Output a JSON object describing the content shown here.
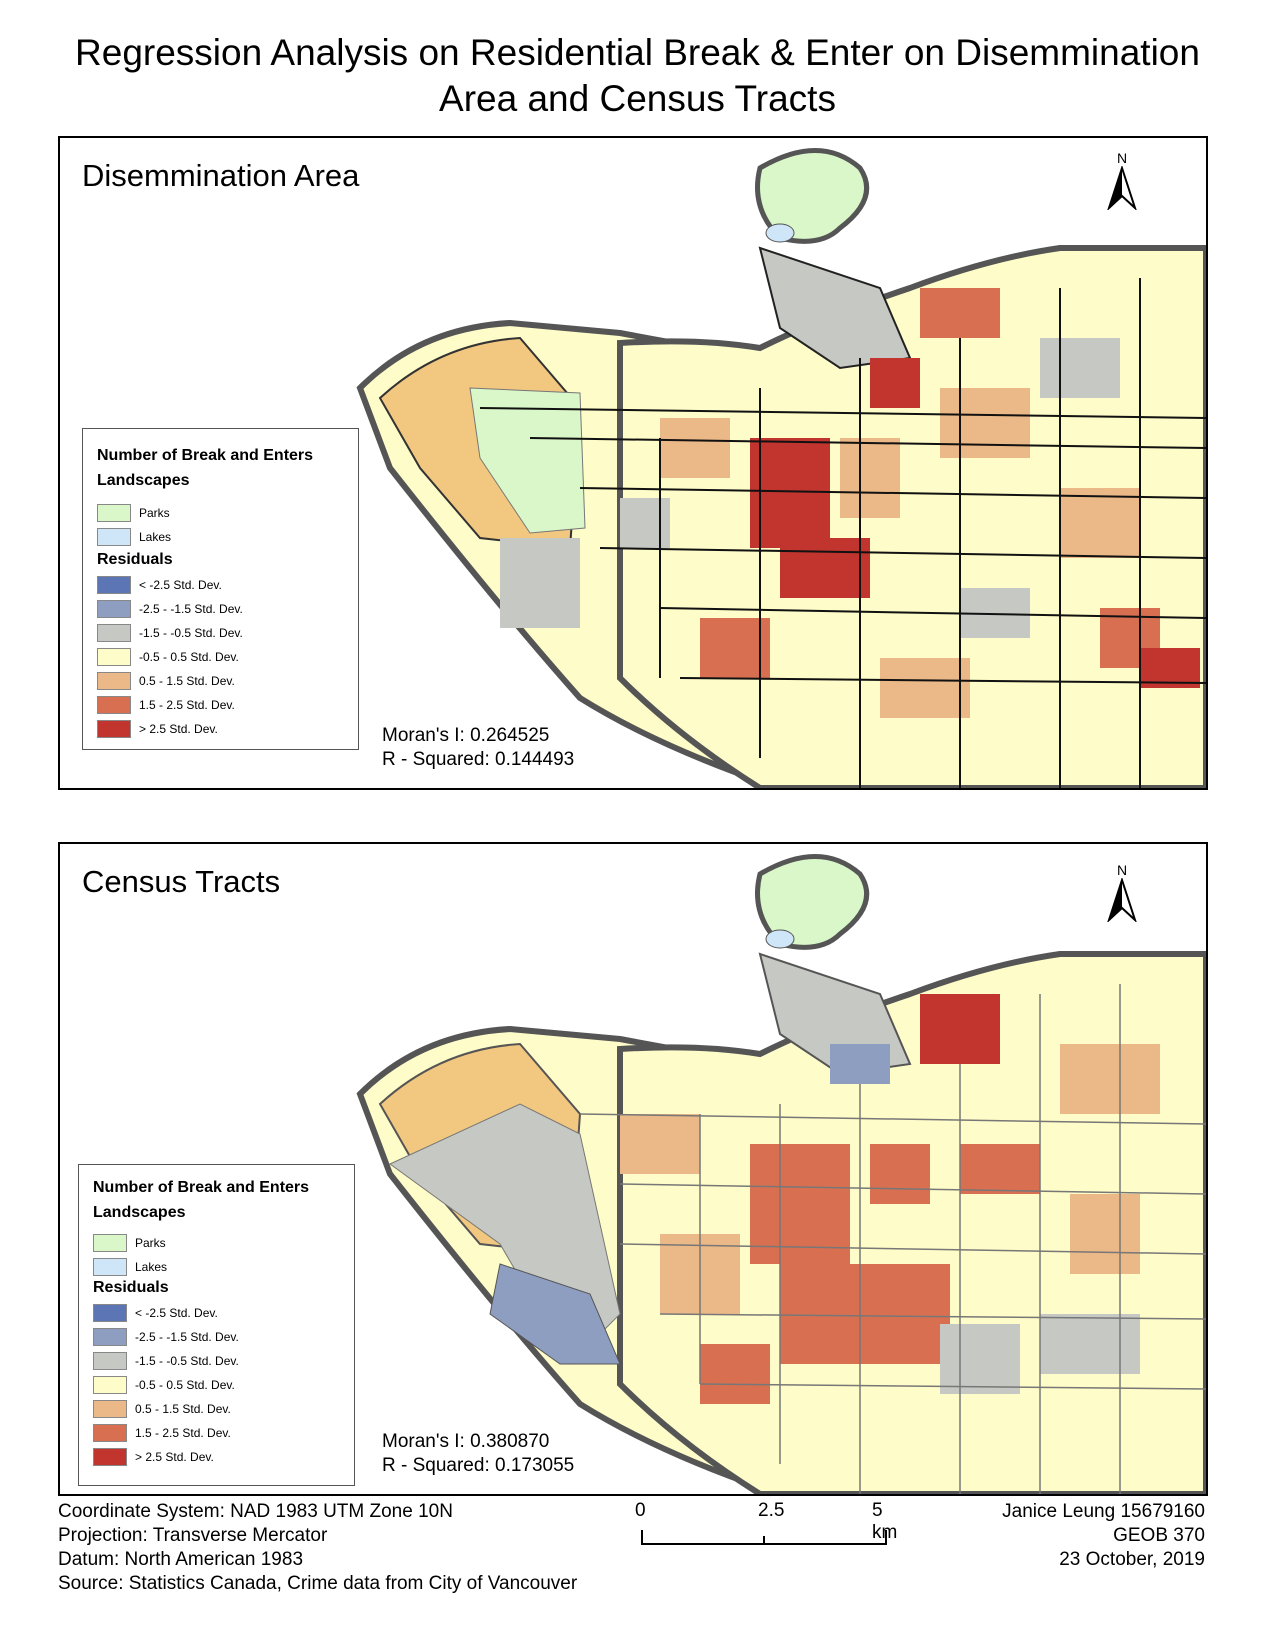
{
  "title_line1": "Regression Analysis on Residential Break & Enter on Disemmination",
  "title_line2": "Area and Census Tracts",
  "legend_title": "Number of Break and Enters",
  "landscapes_label": "Landscapes",
  "residuals_label": "Residuals",
  "landscape_items": [
    {
      "label": "Parks",
      "color": "#d9f7c8"
    },
    {
      "label": "Lakes",
      "color": "#cfe6f8"
    }
  ],
  "residual_items": [
    {
      "label": "< -2.5 Std. Dev.",
      "color": "#5b75b5"
    },
    {
      "label": "-2.5 - -1.5 Std. Dev.",
      "color": "#8d9ec1"
    },
    {
      "label": "-1.5 - -0.5 Std. Dev.",
      "color": "#c6c9c3"
    },
    {
      "label": "-0.5 - 0.5 Std. Dev.",
      "color": "#fefcc8"
    },
    {
      "label": "0.5 - 1.5 Std. Dev.",
      "color": "#ebb887"
    },
    {
      "label": "1.5 - 2.5 Std. Dev.",
      "color": "#d96f51"
    },
    {
      "label": "> 2.5 Std. Dev.",
      "color": "#c1352e"
    }
  ],
  "panels": {
    "da": {
      "title": "Disemmination Area",
      "morans": "Moran's I: 0.264525",
      "rsquared": "R - Squared: 0.144493"
    },
    "ct": {
      "title": "Census Tracts",
      "morans": "Moran's I: 0.380870",
      "rsquared": "R - Squared: 0.173055"
    }
  },
  "north_letter": "N",
  "footer": {
    "coord": "Coordinate System: NAD 1983 UTM Zone 10N",
    "projection": "Projection: Transverse Mercator",
    "datum": "Datum: North American 1983",
    "source": "Source: Statistics Canada, Crime data from City of Vancouver",
    "author": "Janice Leung 15679160",
    "course": "GEOB 370",
    "date": "23 October, 2019"
  },
  "scale": {
    "label_0": "0",
    "label_mid": "2.5",
    "label_end": "5 km"
  }
}
